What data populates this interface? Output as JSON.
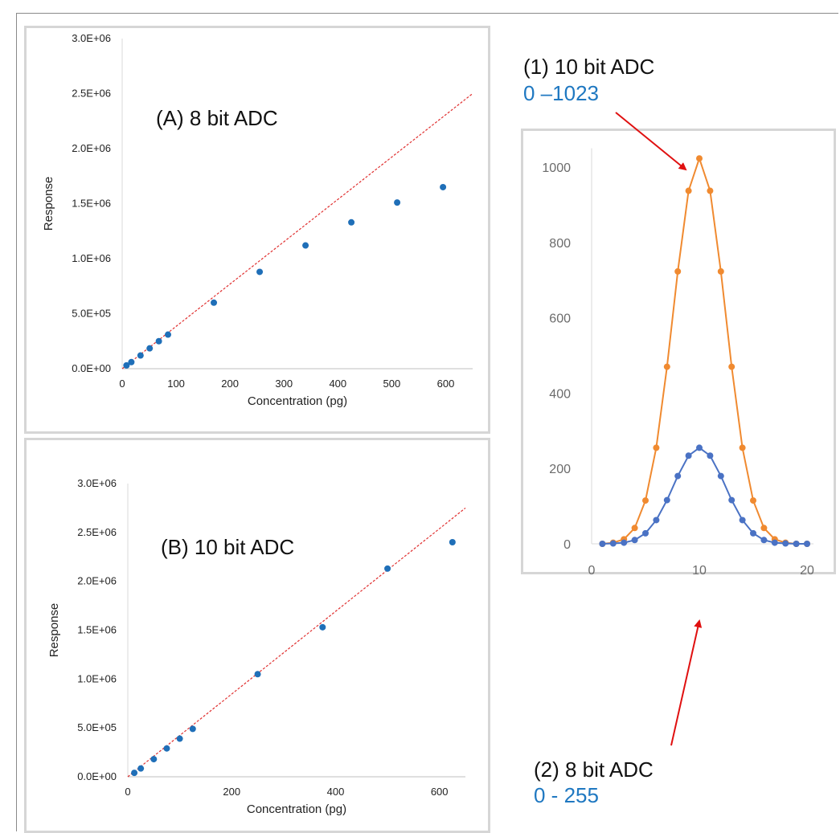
{
  "annotations": {
    "ann1_title": "(1) 10 bit ADC",
    "ann1_range": "0 –1023",
    "ann2_title": "(2) 8 bit ADC",
    "ann2_range": "0 - 255"
  },
  "chart_data": [
    {
      "id": "A",
      "type": "scatter",
      "title": "(A) 8 bit ADC",
      "xlabel": "Concentration (pg)",
      "ylabel": "Response",
      "xlim": [
        0,
        650
      ],
      "ylim": [
        0,
        3000000
      ],
      "x_ticks": [
        0,
        100,
        200,
        300,
        400,
        500,
        600
      ],
      "y_ticks": [
        "0.0E+00",
        "5.0E+05",
        "1.0E+06",
        "1.5E+06",
        "2.0E+06",
        "2.5E+06",
        "3.0E+06"
      ],
      "y_tick_values": [
        0,
        500000,
        1000000,
        1500000,
        2000000,
        2500000,
        3000000
      ],
      "grid": false,
      "series": [
        {
          "x": [
            8,
            17,
            34,
            51,
            68,
            85,
            170,
            255,
            340,
            425,
            510,
            595
          ],
          "y": [
            30000,
            60000,
            120000,
            185000,
            250000,
            310000,
            600000,
            880000,
            1120000,
            1330000,
            1510000,
            1650000
          ],
          "color": "#1f6fb8"
        }
      ],
      "trendline": {
        "x": [
          0,
          650
        ],
        "y": [
          0,
          2500000
        ],
        "color": "#e03030",
        "style": "dashed"
      }
    },
    {
      "id": "B",
      "type": "scatter",
      "title": "(B) 10 bit ADC",
      "xlabel": "Concentration (pg)",
      "ylabel": "Response",
      "xlim": [
        0,
        650
      ],
      "ylim": [
        0,
        3000000
      ],
      "x_ticks": [
        0,
        200,
        400,
        600
      ],
      "y_ticks": [
        "0.0E+00",
        "5.0E+05",
        "1.0E+06",
        "1.5E+06",
        "2.0E+06",
        "2.5E+06",
        "3.0E+06"
      ],
      "y_tick_values": [
        0,
        500000,
        1000000,
        1500000,
        2000000,
        2500000,
        3000000
      ],
      "grid": false,
      "series": [
        {
          "x": [
            12.5,
            25,
            50,
            75,
            100,
            125,
            250,
            375,
            500,
            625
          ],
          "y": [
            40000,
            85000,
            180000,
            290000,
            390000,
            490000,
            1050000,
            1530000,
            2130000,
            2400000
          ],
          "color": "#1f6fb8"
        }
      ],
      "trendline": {
        "x": [
          0,
          650
        ],
        "y": [
          0,
          2750000
        ],
        "color": "#e03030",
        "style": "dashed"
      }
    },
    {
      "id": "C",
      "type": "line",
      "title": "",
      "xlabel": "",
      "ylabel": "",
      "xlim": [
        0,
        20
      ],
      "ylim": [
        0,
        1050
      ],
      "x_ticks": [
        0,
        10,
        20
      ],
      "y_ticks": [
        0,
        200,
        400,
        600,
        800,
        1000
      ],
      "grid": false,
      "series": [
        {
          "name": "10 bit ADC",
          "color": "#f08a30",
          "x": [
            1,
            2,
            3,
            4,
            5,
            6,
            7,
            8,
            9,
            10,
            11,
            12,
            13,
            14,
            15,
            16,
            17,
            18,
            19,
            20
          ],
          "y": [
            0,
            3,
            12,
            42,
            115,
            255,
            470,
            723,
            937,
            1023,
            937,
            723,
            470,
            255,
            115,
            42,
            12,
            3,
            0,
            0
          ]
        },
        {
          "name": "8 bit ADC",
          "color": "#4a72c4",
          "x": [
            1,
            2,
            3,
            4,
            5,
            6,
            7,
            8,
            9,
            10,
            11,
            12,
            13,
            14,
            15,
            16,
            17,
            18,
            19,
            20
          ],
          "y": [
            0,
            1,
            3,
            10,
            28,
            63,
            116,
            180,
            234,
            255,
            234,
            180,
            116,
            63,
            28,
            10,
            3,
            1,
            0,
            0
          ]
        }
      ]
    }
  ]
}
